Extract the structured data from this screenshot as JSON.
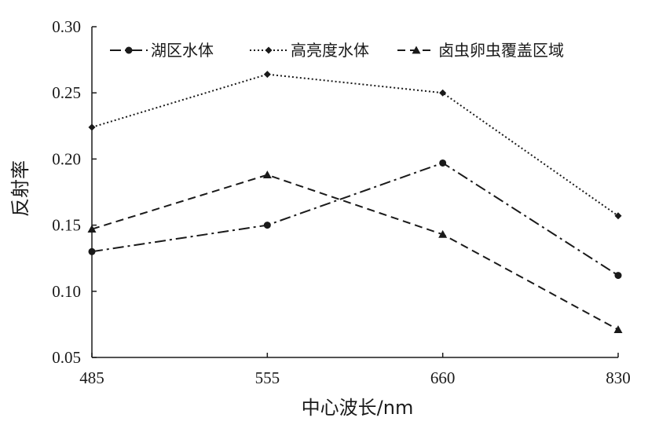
{
  "chart_data": {
    "type": "line",
    "title": "",
    "xlabel": "中心波长/nm",
    "ylabel": "反射率",
    "categories": [
      "485",
      "555",
      "660",
      "830"
    ],
    "ylim": [
      0.05,
      0.3
    ],
    "yticks": [
      "0.05",
      "0.10",
      "0.15",
      "0.20",
      "0.25",
      "0.30"
    ],
    "grid": false,
    "legend_position": "top",
    "series": [
      {
        "name": "湖区水体",
        "values": [
          0.13,
          0.15,
          0.197,
          0.112
        ],
        "dash": "dashdot",
        "marker": "circle"
      },
      {
        "name": "高亮度水体",
        "values": [
          0.224,
          0.264,
          0.25,
          0.157
        ],
        "dash": "dotted",
        "marker": "diamond"
      },
      {
        "name": "卤虫卵虫覆盖区域",
        "values": [
          0.147,
          0.188,
          0.143,
          0.071
        ],
        "dash": "dashed",
        "marker": "triangle"
      }
    ]
  }
}
